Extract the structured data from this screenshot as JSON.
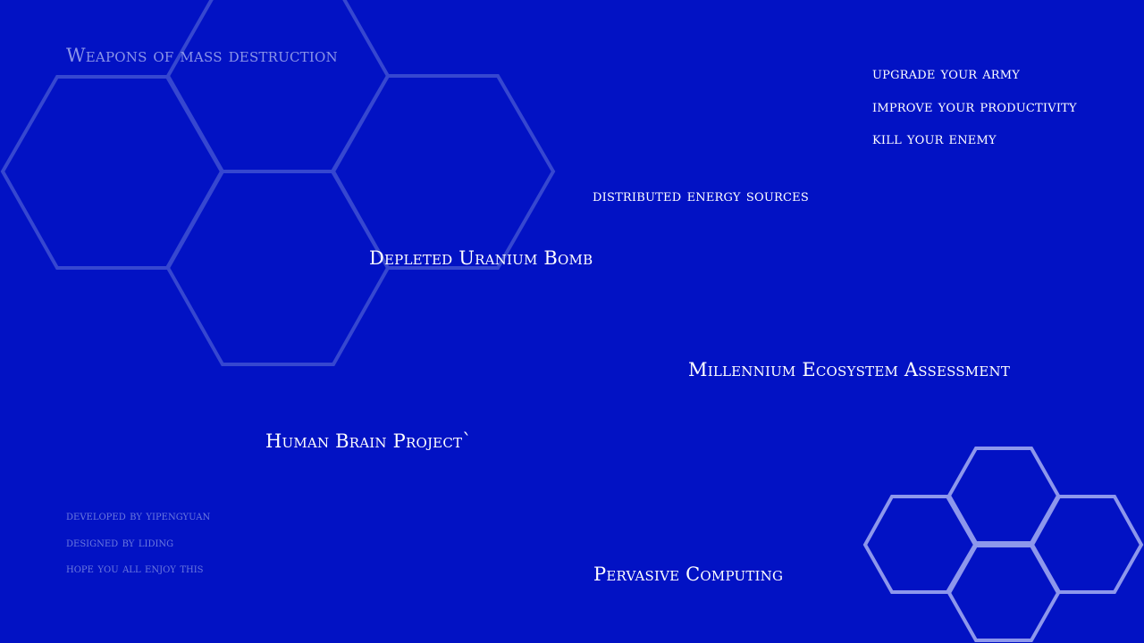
{
  "colors": {
    "background": "#0212c4",
    "hex_dim": "#3647d0",
    "hex_bright": "#8d97ec",
    "text_primary": "#ffffff",
    "text_muted": "#8b95e8",
    "text_credits": "#6c79de"
  },
  "header": {
    "title": "Weapons of mass destruction"
  },
  "menu": {
    "upgrade_army": "upgrade your army",
    "improve_productivity": "improve your productivity",
    "kill_enemy": "kill your enemy"
  },
  "tech_nodes": {
    "distributed_energy": "distributed energy sources",
    "depleted_uranium": "Depleted Uranium Bomb",
    "millennium_ecosystem": "Millennium Ecosystem Assessment",
    "human_brain": "Human Brain Project`",
    "pervasive_computing": "Pervasive Computing"
  },
  "credits": {
    "developer": "developed by yipengyuan",
    "designer": "designed by liding",
    "message": "hope you all enjoy this"
  }
}
